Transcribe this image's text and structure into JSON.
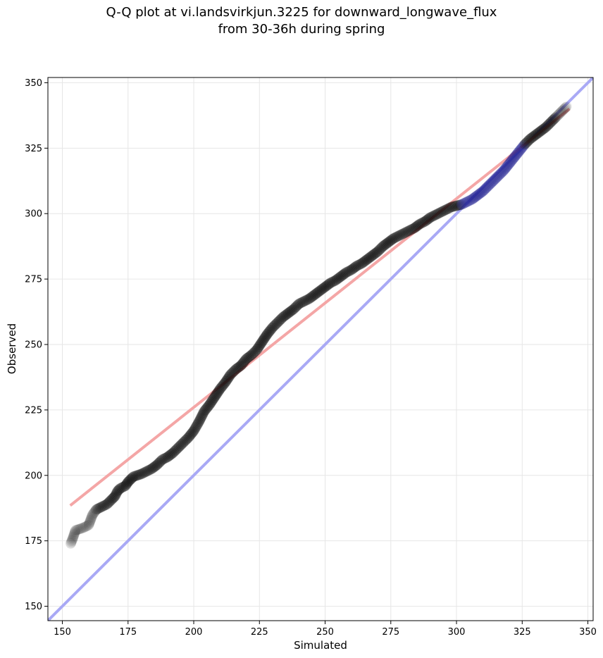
{
  "chart_data": {
    "type": "scatter",
    "title_line1": "Q-Q plot at vi.landsvirkjun.3225 for downward_longwave_flux",
    "title_line2": "from 30-36h during spring",
    "xlabel": "Simulated",
    "ylabel": "Observed",
    "xlim": [
      144.5,
      352
    ],
    "ylim": [
      144.5,
      352
    ],
    "xticks": [
      150,
      175,
      200,
      225,
      250,
      275,
      300,
      325,
      350
    ],
    "yticks": [
      150,
      175,
      200,
      225,
      250,
      275,
      300,
      325,
      350
    ],
    "grid": true,
    "colors": {
      "points": "#000000",
      "fit_line": "#f4a6a6",
      "reference_line": "#a9a9f5",
      "upper_points_tint": "#1a1a8c"
    },
    "quantile_points": {
      "x": [
        153.2,
        154,
        155,
        158,
        160,
        161.5,
        163,
        165,
        167,
        169,
        170,
        171,
        172,
        174,
        175,
        176,
        177,
        178.5,
        180,
        182,
        184,
        186,
        188,
        190,
        192,
        194,
        196,
        198,
        200,
        202,
        204,
        206,
        208,
        210,
        212,
        214,
        216,
        218,
        220,
        222,
        224,
        226,
        228,
        230,
        232,
        234,
        236,
        238,
        240,
        242,
        244,
        246,
        248,
        250,
        252,
        254,
        256,
        258,
        260,
        262,
        264,
        266,
        268,
        270,
        272,
        274,
        276,
        278,
        280,
        282,
        284,
        286,
        288,
        290,
        292,
        294,
        296,
        298,
        300,
        302,
        304,
        306,
        308,
        310,
        312,
        314,
        316,
        318,
        320,
        322,
        324,
        326,
        328,
        330,
        332,
        334,
        336,
        338,
        340,
        342
      ],
      "y": [
        174,
        176,
        179,
        180,
        181,
        185,
        187,
        188,
        189,
        191,
        192,
        194,
        195,
        196,
        197.5,
        198.5,
        199.5,
        200,
        200.5,
        201.5,
        202.5,
        204,
        206,
        207,
        208.5,
        210.5,
        212.5,
        214.5,
        217,
        220.5,
        224.5,
        227,
        230,
        233,
        235.5,
        238.5,
        240.5,
        242,
        244.5,
        246,
        248,
        251,
        254,
        256.5,
        258.5,
        260.5,
        262,
        263.5,
        265.5,
        266.5,
        267.5,
        269,
        270.5,
        272,
        273.5,
        274.5,
        276,
        277.5,
        278.5,
        280,
        281,
        282.5,
        284,
        285.5,
        287.5,
        289,
        290.5,
        291.5,
        292.5,
        293.5,
        294.5,
        296,
        297,
        298.5,
        299.5,
        300.5,
        301.5,
        302.5,
        303,
        303.5,
        304.5,
        305.5,
        307,
        308.5,
        310.5,
        312.5,
        314.5,
        316.5,
        319,
        321.5,
        324,
        326.5,
        328.5,
        330,
        331.5,
        333,
        335,
        337,
        339,
        341
      ]
    },
    "fit_line": {
      "x": [
        153,
        343
      ],
      "y": [
        188.5,
        340
      ]
    },
    "reference_line": {
      "x": [
        144.5,
        352
      ],
      "y": [
        144.5,
        352
      ]
    }
  }
}
